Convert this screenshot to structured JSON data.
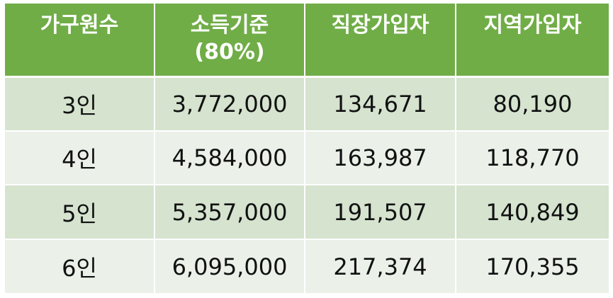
{
  "table": {
    "headers": [
      {
        "line1": "가구원수",
        "line2": ""
      },
      {
        "line1": "소득기준",
        "line2": "(80%)"
      },
      {
        "line1": "직장가입자",
        "line2": ""
      },
      {
        "line1": "지역가입자",
        "line2": ""
      }
    ],
    "rows": [
      [
        "3인",
        "3,772,000",
        "134,671",
        "80,190"
      ],
      [
        "4인",
        "4,584,000",
        "163,987",
        "118,770"
      ],
      [
        "5인",
        "5,357,000",
        "191,507",
        "140,849"
      ],
      [
        "6인",
        "6,095,000",
        "217,374",
        "170,355"
      ]
    ]
  },
  "colors": {
    "header_bg": "#70ad47",
    "row_odd_bg": "#d5e3cf",
    "row_even_bg": "#ebf1e9"
  }
}
